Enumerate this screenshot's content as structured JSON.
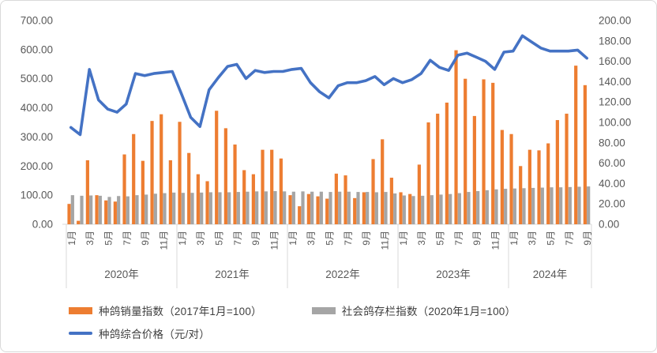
{
  "chart_data": {
    "type": "combo-bar-line",
    "title": "",
    "x_start": "2020年1月",
    "x_end": "2024年9月",
    "years": [
      {
        "label": "2020年",
        "months": 12
      },
      {
        "label": "2021年",
        "months": 12
      },
      {
        "label": "2022年",
        "months": 12
      },
      {
        "label": "2023年",
        "months": 12
      },
      {
        "label": "2024年",
        "months": 9
      }
    ],
    "month_tick_step": 2,
    "month_tick_suffix": "月",
    "left_axis": {
      "min": 0,
      "max": 700,
      "step": 100,
      "decimals": 2
    },
    "right_axis": {
      "min": 0,
      "max": 200,
      "step": 20,
      "decimals": 2
    },
    "grid": false,
    "legend_position": "bottom-left",
    "series": [
      {
        "name": "种鸽销量指数（2017年1月=100）",
        "type": "bar",
        "axis": "left",
        "color": "#ED7D31",
        "values": [
          70,
          12,
          220,
          100,
          82,
          78,
          240,
          310,
          218,
          355,
          378,
          220,
          352,
          245,
          172,
          148,
          390,
          330,
          274,
          186,
          172,
          256,
          256,
          226,
          100,
          62,
          104,
          96,
          88,
          174,
          168,
          90,
          110,
          224,
          292,
          160,
          110,
          104,
          205,
          350,
          380,
          418,
          598,
          500,
          372,
          498,
          486,
          324,
          310,
          200,
          256,
          254,
          278,
          358,
          380,
          545,
          478
        ]
      },
      {
        "name": "社会鸽存栏指数（2020年1月=100）",
        "type": "bar",
        "axis": "left",
        "color": "#A5A5A5",
        "values": [
          100,
          98,
          99,
          98,
          94,
          97,
          96,
          100,
          102,
          105,
          107,
          109,
          108,
          108,
          109,
          110,
          110,
          110,
          111,
          112,
          113,
          113,
          114,
          113,
          112,
          113,
          112,
          112,
          111,
          112,
          112,
          111,
          111,
          110,
          111,
          106,
          99,
          97,
          98,
          100,
          102,
          104,
          107,
          111,
          114,
          117,
          120,
          122,
          123,
          124,
          125,
          126,
          127,
          127,
          128,
          129,
          130
        ]
      },
      {
        "name": "种鸽综合价格（元/对）",
        "type": "line",
        "axis": "right",
        "color": "#4472C4",
        "values": [
          95,
          88,
          152,
          122,
          113,
          110,
          118,
          148,
          146,
          148,
          149,
          150,
          128,
          105,
          96,
          132,
          144,
          155,
          157,
          143,
          151,
          149,
          150,
          150,
          152,
          153,
          139,
          130,
          124,
          136,
          139,
          139,
          141,
          145,
          137,
          143,
          139,
          142,
          148,
          161,
          154,
          151,
          166,
          168,
          164,
          160,
          152,
          169,
          170,
          185,
          179,
          173,
          170,
          170,
          170,
          171,
          163
        ]
      }
    ]
  },
  "colors": {
    "axis_text": "#595959",
    "axis_line": "#D9D9D9",
    "separator_line": "#D9D9D9",
    "border": "#D9D9D9",
    "background": "#FFFFFF",
    "legend_text": "#3F3F3F"
  }
}
